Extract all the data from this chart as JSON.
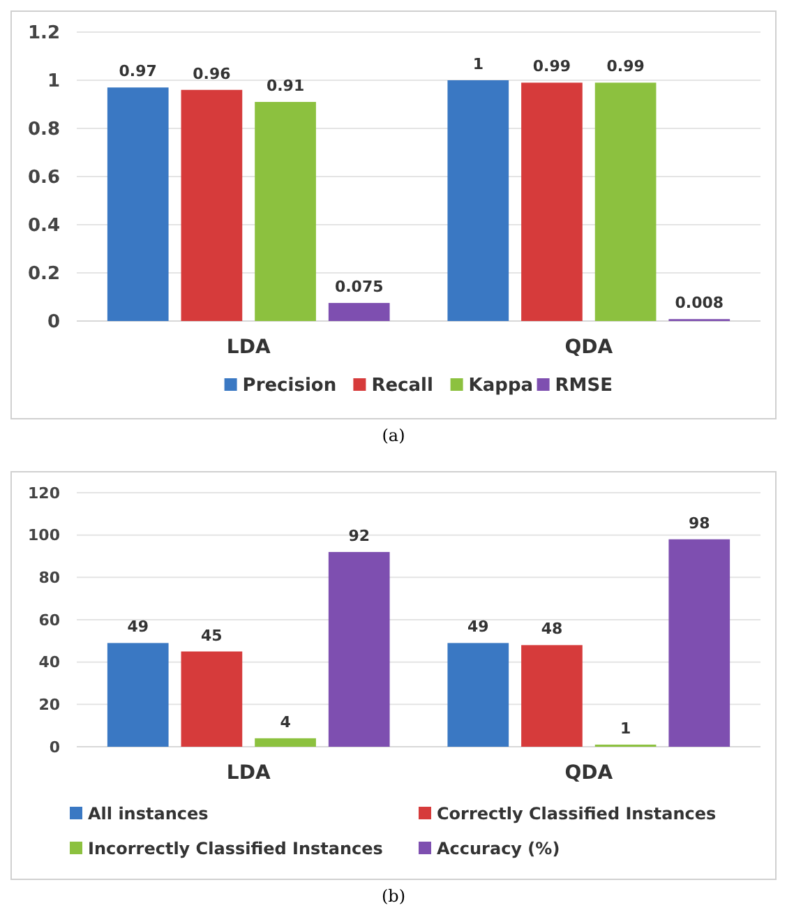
{
  "chart_data": [
    {
      "type": "bar",
      "categories": [
        "LDA",
        "QDA"
      ],
      "series": [
        {
          "name": "Precision",
          "color": "#3a78c3",
          "values": [
            0.97,
            1
          ]
        },
        {
          "name": "Recall",
          "color": "#d63b3b",
          "values": [
            0.96,
            0.99
          ]
        },
        {
          "name": "Kappa",
          "color": "#8cc13f",
          "values": [
            0.91,
            0.99
          ]
        },
        {
          "name": "RMSE",
          "color": "#7e4fb0",
          "values": [
            0.075,
            0.008
          ]
        }
      ],
      "ylim": [
        0,
        1.2
      ],
      "yticks": [
        0,
        0.2,
        0.4,
        0.6,
        0.8,
        1,
        1.2
      ],
      "grid": "y",
      "legend": "bottom",
      "data_labels": true,
      "annotations": [
        "(a)"
      ]
    },
    {
      "type": "bar",
      "categories": [
        "LDA",
        "QDA"
      ],
      "series": [
        {
          "name": "All instances",
          "color": "#3a78c3",
          "values": [
            49,
            49
          ]
        },
        {
          "name": "Correctly Classified Instances",
          "color": "#d63b3b",
          "values": [
            45,
            48
          ]
        },
        {
          "name": "Incorrectly Classified Instances",
          "color": "#8cc13f",
          "values": [
            4,
            1
          ]
        },
        {
          "name": "Accuracy (%)",
          "color": "#7e4fb0",
          "values": [
            92,
            98
          ]
        }
      ],
      "ylim": [
        0,
        120
      ],
      "yticks": [
        0,
        20,
        40,
        60,
        80,
        100,
        120
      ],
      "grid": "y",
      "legend": "bottom",
      "data_labels": true,
      "annotations": [
        "(b)"
      ]
    }
  ]
}
